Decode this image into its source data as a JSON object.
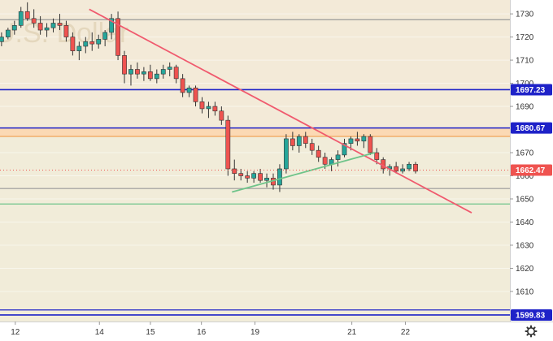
{
  "chart_data": {
    "type": "candlestick",
    "watermark": "U.S. Dollar",
    "x_labels": [
      "12",
      "14",
      "15",
      "16",
      "19",
      "21",
      "22"
    ],
    "y_ticks": [
      1610,
      1620,
      1630,
      1640,
      1650,
      1660,
      1670,
      1690,
      1700,
      1710,
      1720,
      1730
    ],
    "y_range": [
      1597,
      1736
    ],
    "x_range": [
      0,
      100
    ],
    "x_label_positions": [
      3,
      19.5,
      29.5,
      39.5,
      50,
      69,
      79.5
    ],
    "current_price": 1662.47,
    "colors": {
      "up": "#26a69a",
      "down": "#ef5350",
      "wick": "#333333",
      "resistance_band": "#fbd9b4",
      "upper_background": "#f3ead8",
      "lower_background": "#f1ecd9",
      "blue_line": "#1e22c8",
      "red_trendline": "#f05a6e",
      "green_line": "#6fc48a",
      "price_badge": "#ef5350"
    },
    "levels": [
      {
        "price": 1697.23,
        "label": "1697.23",
        "color": "#1e22c8"
      },
      {
        "price": 1680.67,
        "label": "1680.67",
        "color": "#1e22c8"
      },
      {
        "price": 1599.83,
        "label": "1599.83",
        "color": "#1e22c8"
      }
    ],
    "extra_lines": [
      {
        "price": 1727.5,
        "color": "#999999"
      },
      {
        "price": 1677,
        "color": "#f0a050"
      },
      {
        "price": 1654.5,
        "color": "#999999"
      },
      {
        "price": 1647.8,
        "color": "#6fc48a"
      },
      {
        "price": 1602,
        "color": "#1e22c8"
      }
    ],
    "trendlines": [
      {
        "name": "descending resistance",
        "color": "#f05a6e",
        "points": [
          [
            17.5,
            1732
          ],
          [
            92.5,
            1644
          ]
        ]
      },
      {
        "name": "rising support",
        "color": "#6fc48a",
        "points": [
          [
            45.5,
            1653
          ],
          [
            73.5,
            1670
          ]
        ]
      }
    ],
    "candles_ohlc": [
      [
        1718,
        1722,
        1716,
        1720
      ],
      [
        1720,
        1724,
        1719,
        1723
      ],
      [
        1723,
        1727,
        1721,
        1725
      ],
      [
        1725,
        1733,
        1724,
        1731
      ],
      [
        1731,
        1735,
        1727,
        1728
      ],
      [
        1728,
        1732,
        1724,
        1726
      ],
      [
        1726,
        1729,
        1721,
        1723
      ],
      [
        1723,
        1726,
        1720,
        1724
      ],
      [
        1724,
        1728,
        1722,
        1726
      ],
      [
        1726,
        1730,
        1723,
        1725
      ],
      [
        1725,
        1727,
        1718,
        1720
      ],
      [
        1720,
        1722,
        1712,
        1714
      ],
      [
        1714,
        1718,
        1710,
        1716
      ],
      [
        1716,
        1720,
        1713,
        1718
      ],
      [
        1718,
        1722,
        1714,
        1717
      ],
      [
        1717,
        1721,
        1715,
        1719
      ],
      [
        1719,
        1723,
        1716,
        1722
      ],
      [
        1722,
        1730,
        1719,
        1728
      ],
      [
        1728,
        1731,
        1710,
        1712
      ],
      [
        1712,
        1714,
        1700,
        1704
      ],
      [
        1704,
        1708,
        1699,
        1706
      ],
      [
        1706,
        1709,
        1702,
        1704
      ],
      [
        1704,
        1707,
        1701,
        1705
      ],
      [
        1705,
        1708,
        1701,
        1702
      ],
      [
        1702,
        1706,
        1700,
        1704
      ],
      [
        1704,
        1708,
        1702,
        1706
      ],
      [
        1706,
        1709,
        1703,
        1707
      ],
      [
        1707,
        1708,
        1700,
        1702
      ],
      [
        1702,
        1704,
        1694,
        1696
      ],
      [
        1696,
        1699,
        1694,
        1698
      ],
      [
        1698,
        1699,
        1690,
        1692
      ],
      [
        1692,
        1694,
        1687,
        1689
      ],
      [
        1689,
        1692,
        1685,
        1690
      ],
      [
        1690,
        1692,
        1686,
        1688
      ],
      [
        1688,
        1690,
        1682,
        1684
      ],
      [
        1684,
        1686,
        1660,
        1663
      ],
      [
        1663,
        1667,
        1658,
        1661
      ],
      [
        1661,
        1663,
        1658,
        1660
      ],
      [
        1660,
        1662,
        1657,
        1659
      ],
      [
        1659,
        1662,
        1657,
        1661
      ],
      [
        1661,
        1663,
        1657,
        1658
      ],
      [
        1658,
        1661,
        1655,
        1659
      ],
      [
        1659,
        1661,
        1654,
        1656
      ],
      [
        1656,
        1665,
        1653,
        1663
      ],
      [
        1663,
        1678,
        1661,
        1676
      ],
      [
        1676,
        1679,
        1671,
        1673
      ],
      [
        1673,
        1678,
        1670,
        1677
      ],
      [
        1677,
        1679,
        1672,
        1674
      ],
      [
        1674,
        1676,
        1669,
        1671
      ],
      [
        1671,
        1673,
        1666,
        1668
      ],
      [
        1668,
        1670,
        1663,
        1665
      ],
      [
        1665,
        1668,
        1662,
        1667
      ],
      [
        1667,
        1671,
        1664,
        1669
      ],
      [
        1669,
        1676,
        1668,
        1674
      ],
      [
        1674,
        1677,
        1671,
        1676
      ],
      [
        1676,
        1679,
        1673,
        1675
      ],
      [
        1675,
        1678,
        1672,
        1677
      ],
      [
        1677,
        1678,
        1669,
        1670
      ],
      [
        1670,
        1672,
        1665,
        1667
      ],
      [
        1667,
        1668,
        1661,
        1663
      ],
      [
        1663,
        1665,
        1660,
        1664
      ],
      [
        1664,
        1666,
        1661,
        1662
      ],
      [
        1662,
        1665,
        1661,
        1663
      ],
      [
        1663,
        1666,
        1662,
        1665
      ],
      [
        1665,
        1666,
        1661,
        1662
      ]
    ]
  }
}
